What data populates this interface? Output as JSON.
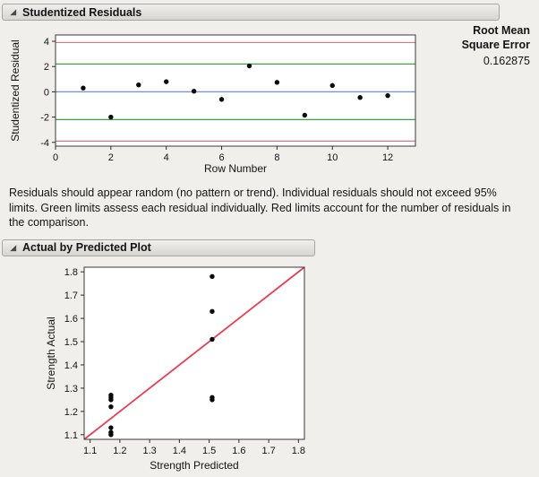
{
  "panels": {
    "residuals": {
      "title": "Studentized Residuals",
      "rmse_label": "Root Mean\nSquare Error",
      "rmse_value": "0.162875",
      "caption": "Residuals should appear random (no pattern or trend). Individual residuals should not exceed 95% limits. Green limits assess each residual individually. Red limits account for the number of residuals in the comparison."
    },
    "actual_by_predicted": {
      "title": "Actual by Predicted Plot"
    }
  },
  "colors": {
    "red_limit": "#d9758a",
    "green_limit": "#3da04b",
    "zero_line_blue": "#6d93d6",
    "identity_line_red": "#e83e52",
    "point_black": "#0a0a0a"
  },
  "chart_data": [
    {
      "id": "residuals",
      "type": "scatter",
      "title": "Studentized Residuals",
      "xlabel": "Row Number",
      "ylabel": "Studentized Residual",
      "xlim": [
        0,
        13
      ],
      "ylim": [
        -4.3,
        4.5
      ],
      "grid": false,
      "legend": "none",
      "xticks": {
        "values": [
          0,
          2,
          4,
          6,
          8,
          10,
          12
        ],
        "labels": [
          "0",
          "2",
          "4",
          "6",
          "8",
          "10",
          "12"
        ]
      },
      "yticks": {
        "values": [
          -4,
          -2,
          0,
          2,
          4
        ],
        "labels": [
          "-4",
          "-2",
          "0",
          "2",
          "4"
        ]
      },
      "points": {
        "x": [
          1,
          2,
          3,
          4,
          5,
          6,
          7,
          8,
          9,
          10,
          11,
          12
        ],
        "y": [
          0.3,
          -2.0,
          0.55,
          0.8,
          0.05,
          -0.6,
          2.05,
          0.75,
          -1.85,
          0.5,
          -0.45,
          -0.3
        ]
      },
      "ref_lines": [
        {
          "y": 3.9,
          "color": "#d9758a"
        },
        {
          "y": 2.2,
          "color": "#3da04b"
        },
        {
          "y": 0,
          "color": "#6d93d6"
        },
        {
          "y": -2.2,
          "color": "#3da04b"
        },
        {
          "y": -3.9,
          "color": "#d9758a"
        }
      ],
      "lines": []
    },
    {
      "id": "avp",
      "type": "scatter",
      "title": "Actual by Predicted Plot",
      "xlabel": "Strength Predicted",
      "ylabel": "Strength Actual",
      "xlim": [
        1.08,
        1.82
      ],
      "ylim": [
        1.08,
        1.82
      ],
      "grid": false,
      "legend": "none",
      "xticks": {
        "values": [
          1.1,
          1.2,
          1.3,
          1.4,
          1.5,
          1.6,
          1.7,
          1.8
        ],
        "labels": [
          "1.1",
          "1.2",
          "1.3",
          "1.4",
          "1.5",
          "1.6",
          "1.7",
          "1.8"
        ]
      },
      "yticks": {
        "values": [
          1.1,
          1.2,
          1.3,
          1.4,
          1.5,
          1.6,
          1.7,
          1.8
        ],
        "labels": [
          "1.1",
          "1.2",
          "1.3",
          "1.4",
          "1.5",
          "1.6",
          "1.7",
          "1.8"
        ]
      },
      "points": {
        "x": [
          1.17,
          1.17,
          1.17,
          1.17,
          1.17,
          1.17,
          1.17,
          1.51,
          1.51,
          1.51,
          1.51,
          1.51
        ],
        "y": [
          1.27,
          1.26,
          1.25,
          1.22,
          1.13,
          1.11,
          1.1,
          1.78,
          1.63,
          1.51,
          1.26,
          1.25
        ]
      },
      "ref_lines": [],
      "lines": [
        {
          "x1": 1.08,
          "y1": 1.08,
          "x2": 1.82,
          "y2": 1.82,
          "color": "#e83e52"
        }
      ]
    }
  ]
}
